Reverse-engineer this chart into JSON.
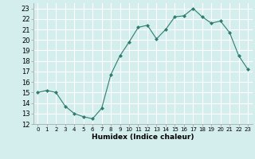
{
  "x": [
    0,
    1,
    2,
    3,
    4,
    5,
    6,
    7,
    8,
    9,
    10,
    11,
    12,
    13,
    14,
    15,
    16,
    17,
    18,
    19,
    20,
    21,
    22,
    23
  ],
  "y": [
    15,
    15.2,
    15,
    13.7,
    13,
    12.7,
    12.5,
    13.5,
    16.7,
    18.5,
    19.8,
    21.2,
    21.4,
    20.1,
    21.0,
    22.2,
    22.3,
    23.0,
    22.2,
    21.6,
    21.8,
    20.7,
    18.5,
    17.2
  ],
  "line_color": "#2e7d6e",
  "marker": "D",
  "marker_size": 2.0,
  "bg_color": "#d4eeee",
  "grid_color": "#ffffff",
  "xlabel": "Humidex (Indice chaleur)",
  "xlim": [
    -0.5,
    23.5
  ],
  "ylim": [
    12,
    23.5
  ],
  "yticks": [
    12,
    13,
    14,
    15,
    16,
    17,
    18,
    19,
    20,
    21,
    22,
    23
  ],
  "xticks": [
    0,
    1,
    2,
    3,
    4,
    5,
    6,
    7,
    8,
    9,
    10,
    11,
    12,
    13,
    14,
    15,
    16,
    17,
    18,
    19,
    20,
    21,
    22,
    23
  ]
}
